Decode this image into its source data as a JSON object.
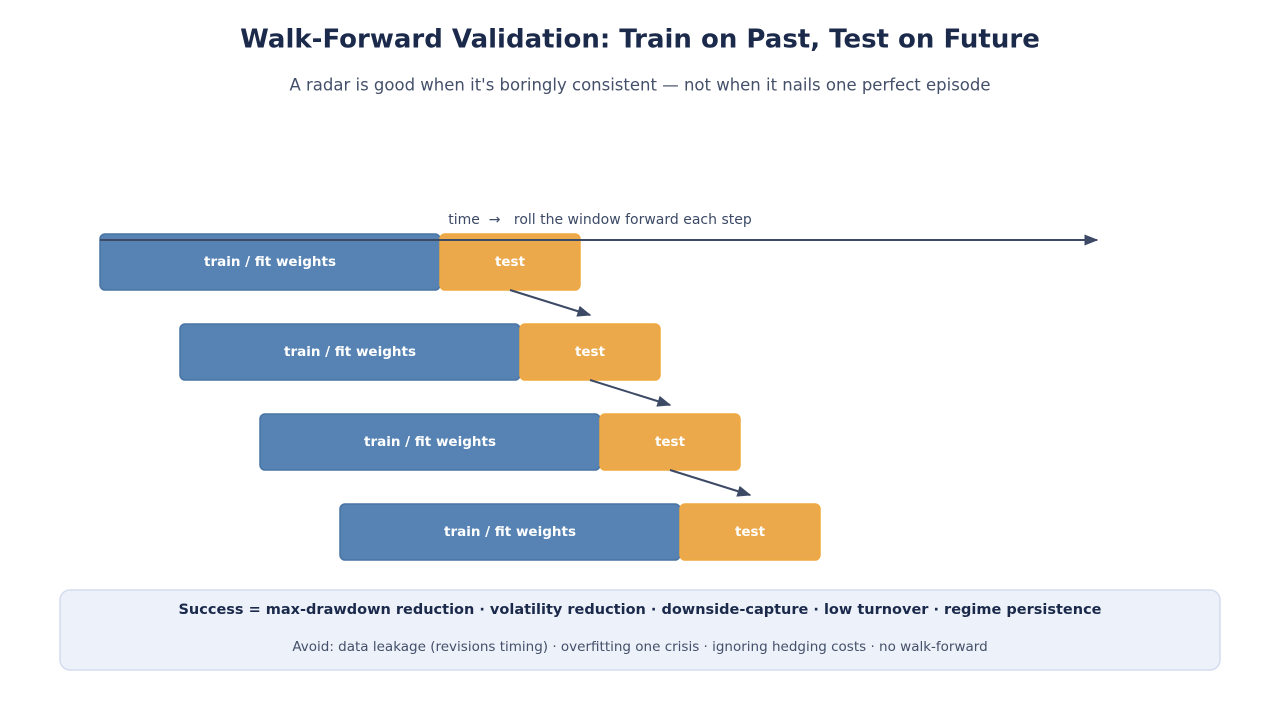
{
  "header": {
    "title": "Walk-Forward Validation: Train on Past, Test on Future",
    "subtitle": "A radar is good when it's boringly consistent — not when it nails one perfect episode"
  },
  "timeline": {
    "label": "time  →   roll the window forward each step"
  },
  "windows": [
    {
      "train": "train / fit weights",
      "test": "test"
    },
    {
      "train": "train / fit weights",
      "test": "test"
    },
    {
      "train": "train / fit weights",
      "test": "test"
    },
    {
      "train": "train / fit weights",
      "test": "test"
    }
  ],
  "footer": {
    "success": "Success = max-drawdown reduction · volatility reduction · downside-capture · low turnover · regime persistence",
    "avoid": "Avoid: data leakage (revisions timing) · overfitting one crisis · ignoring hedging costs · no walk-forward"
  }
}
